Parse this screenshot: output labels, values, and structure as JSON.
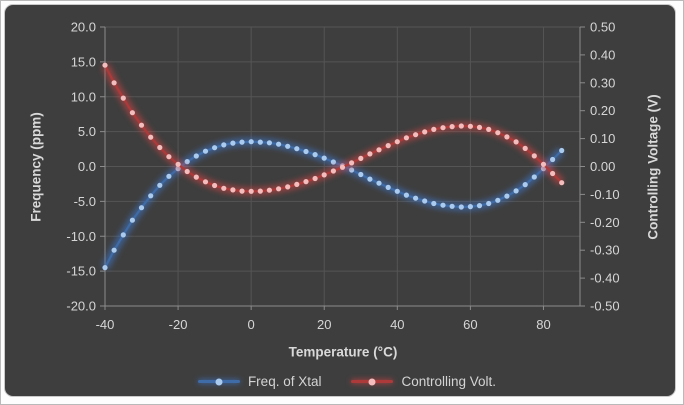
{
  "chart_data": {
    "type": "line",
    "title": "",
    "xlabel": "Temperature (°C)",
    "ylabel_left": "Frequency (ppm)",
    "ylabel_right": "Controlling Voltage (V)",
    "legend_position": "bottom",
    "grid": true,
    "x_axis": {
      "min": -40,
      "max": 90,
      "tick_values": [
        -40,
        -20,
        0,
        20,
        40,
        60,
        80
      ],
      "tick_labels": [
        "-40",
        "-20",
        "0",
        "20",
        "40",
        "60",
        "80"
      ]
    },
    "y_left_axis": {
      "min": -20,
      "max": 20,
      "step": 5,
      "tick_labels": [
        "20.0",
        "15.0",
        "10.0",
        "5.0",
        "0.0",
        "-5.0",
        "-10.0",
        "-15.0",
        "-20.0"
      ]
    },
    "y_right_axis": {
      "min": -0.5,
      "max": 0.5,
      "step": 0.1,
      "tick_labels": [
        "0.50",
        "0.40",
        "0.30",
        "0.20",
        "0.10",
        "0.00",
        "-0.10",
        "-0.20",
        "-0.30",
        "-0.40",
        "-0.50"
      ]
    },
    "x": [
      -40,
      -37.5,
      -35,
      -32.5,
      -30,
      -27.5,
      -25,
      -22.5,
      -20,
      -17.5,
      -15,
      -12.5,
      -10,
      -7.5,
      -5,
      -2.5,
      0,
      2.5,
      5,
      7.5,
      10,
      12.5,
      15,
      17.5,
      20,
      22.5,
      25,
      27.5,
      30,
      32.5,
      35,
      37.5,
      40,
      42.5,
      45,
      47.5,
      50,
      52.5,
      55,
      57.5,
      60,
      62.5,
      65,
      67.5,
      70,
      72.5,
      75,
      77.5,
      80,
      82.5,
      85
    ],
    "series": [
      {
        "name": "Freq. of Xtal",
        "axis": "left",
        "line_color": "#3f6ba6",
        "marker_color": "#aacbee",
        "glow_color": "#3f7ad1",
        "values": [
          -14.5,
          -12.0,
          -9.8,
          -7.7,
          -5.9,
          -4.2,
          -2.7,
          -1.4,
          -0.3,
          0.7,
          1.5,
          2.2,
          2.7,
          3.1,
          3.35,
          3.5,
          3.55,
          3.5,
          3.4,
          3.2,
          2.9,
          2.55,
          2.15,
          1.7,
          1.2,
          0.65,
          0.1,
          -0.5,
          -1.15,
          -1.8,
          -2.4,
          -3.0,
          -3.55,
          -4.1,
          -4.55,
          -4.95,
          -5.3,
          -5.55,
          -5.7,
          -5.8,
          -5.75,
          -5.6,
          -5.3,
          -4.85,
          -4.25,
          -3.5,
          -2.6,
          -1.5,
          -0.3,
          1.0,
          2.3
        ]
      },
      {
        "name": "Controlling Volt.",
        "axis": "right",
        "line_color": "#ad3a3a",
        "marker_color": "#f3bdbd",
        "glow_color": "#d84444",
        "values": [
          0.363,
          0.3,
          0.245,
          0.193,
          0.148,
          0.105,
          0.068,
          0.035,
          0.008,
          -0.018,
          -0.038,
          -0.055,
          -0.068,
          -0.078,
          -0.084,
          -0.088,
          -0.089,
          -0.088,
          -0.085,
          -0.08,
          -0.073,
          -0.064,
          -0.054,
          -0.043,
          -0.03,
          -0.016,
          -0.003,
          0.013,
          0.029,
          0.045,
          0.06,
          0.075,
          0.089,
          0.103,
          0.114,
          0.124,
          0.133,
          0.139,
          0.143,
          0.145,
          0.144,
          0.14,
          0.133,
          0.121,
          0.106,
          0.088,
          0.065,
          0.038,
          0.008,
          -0.025,
          -0.058
        ]
      }
    ]
  },
  "colors": {
    "chart_background": "#3e3e3e",
    "page_background": "#f4f4f4",
    "gridline": "#555555",
    "axis_line": "#8c8c8c",
    "tick_label": "#d6d6d6",
    "title_text": "#d9d9d9"
  }
}
